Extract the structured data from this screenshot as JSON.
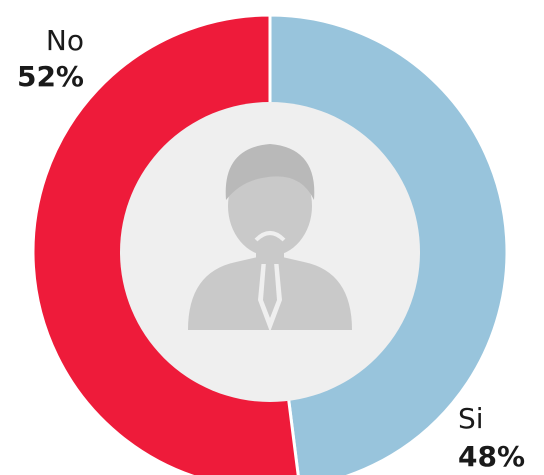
{
  "chart_data": {
    "type": "donut",
    "categories": [
      "Si",
      "No"
    ],
    "values": [
      48,
      52
    ],
    "value_labels": [
      "48%",
      "52%"
    ],
    "colors": [
      "#98c4dc",
      "#ee1b3a"
    ]
  }
}
